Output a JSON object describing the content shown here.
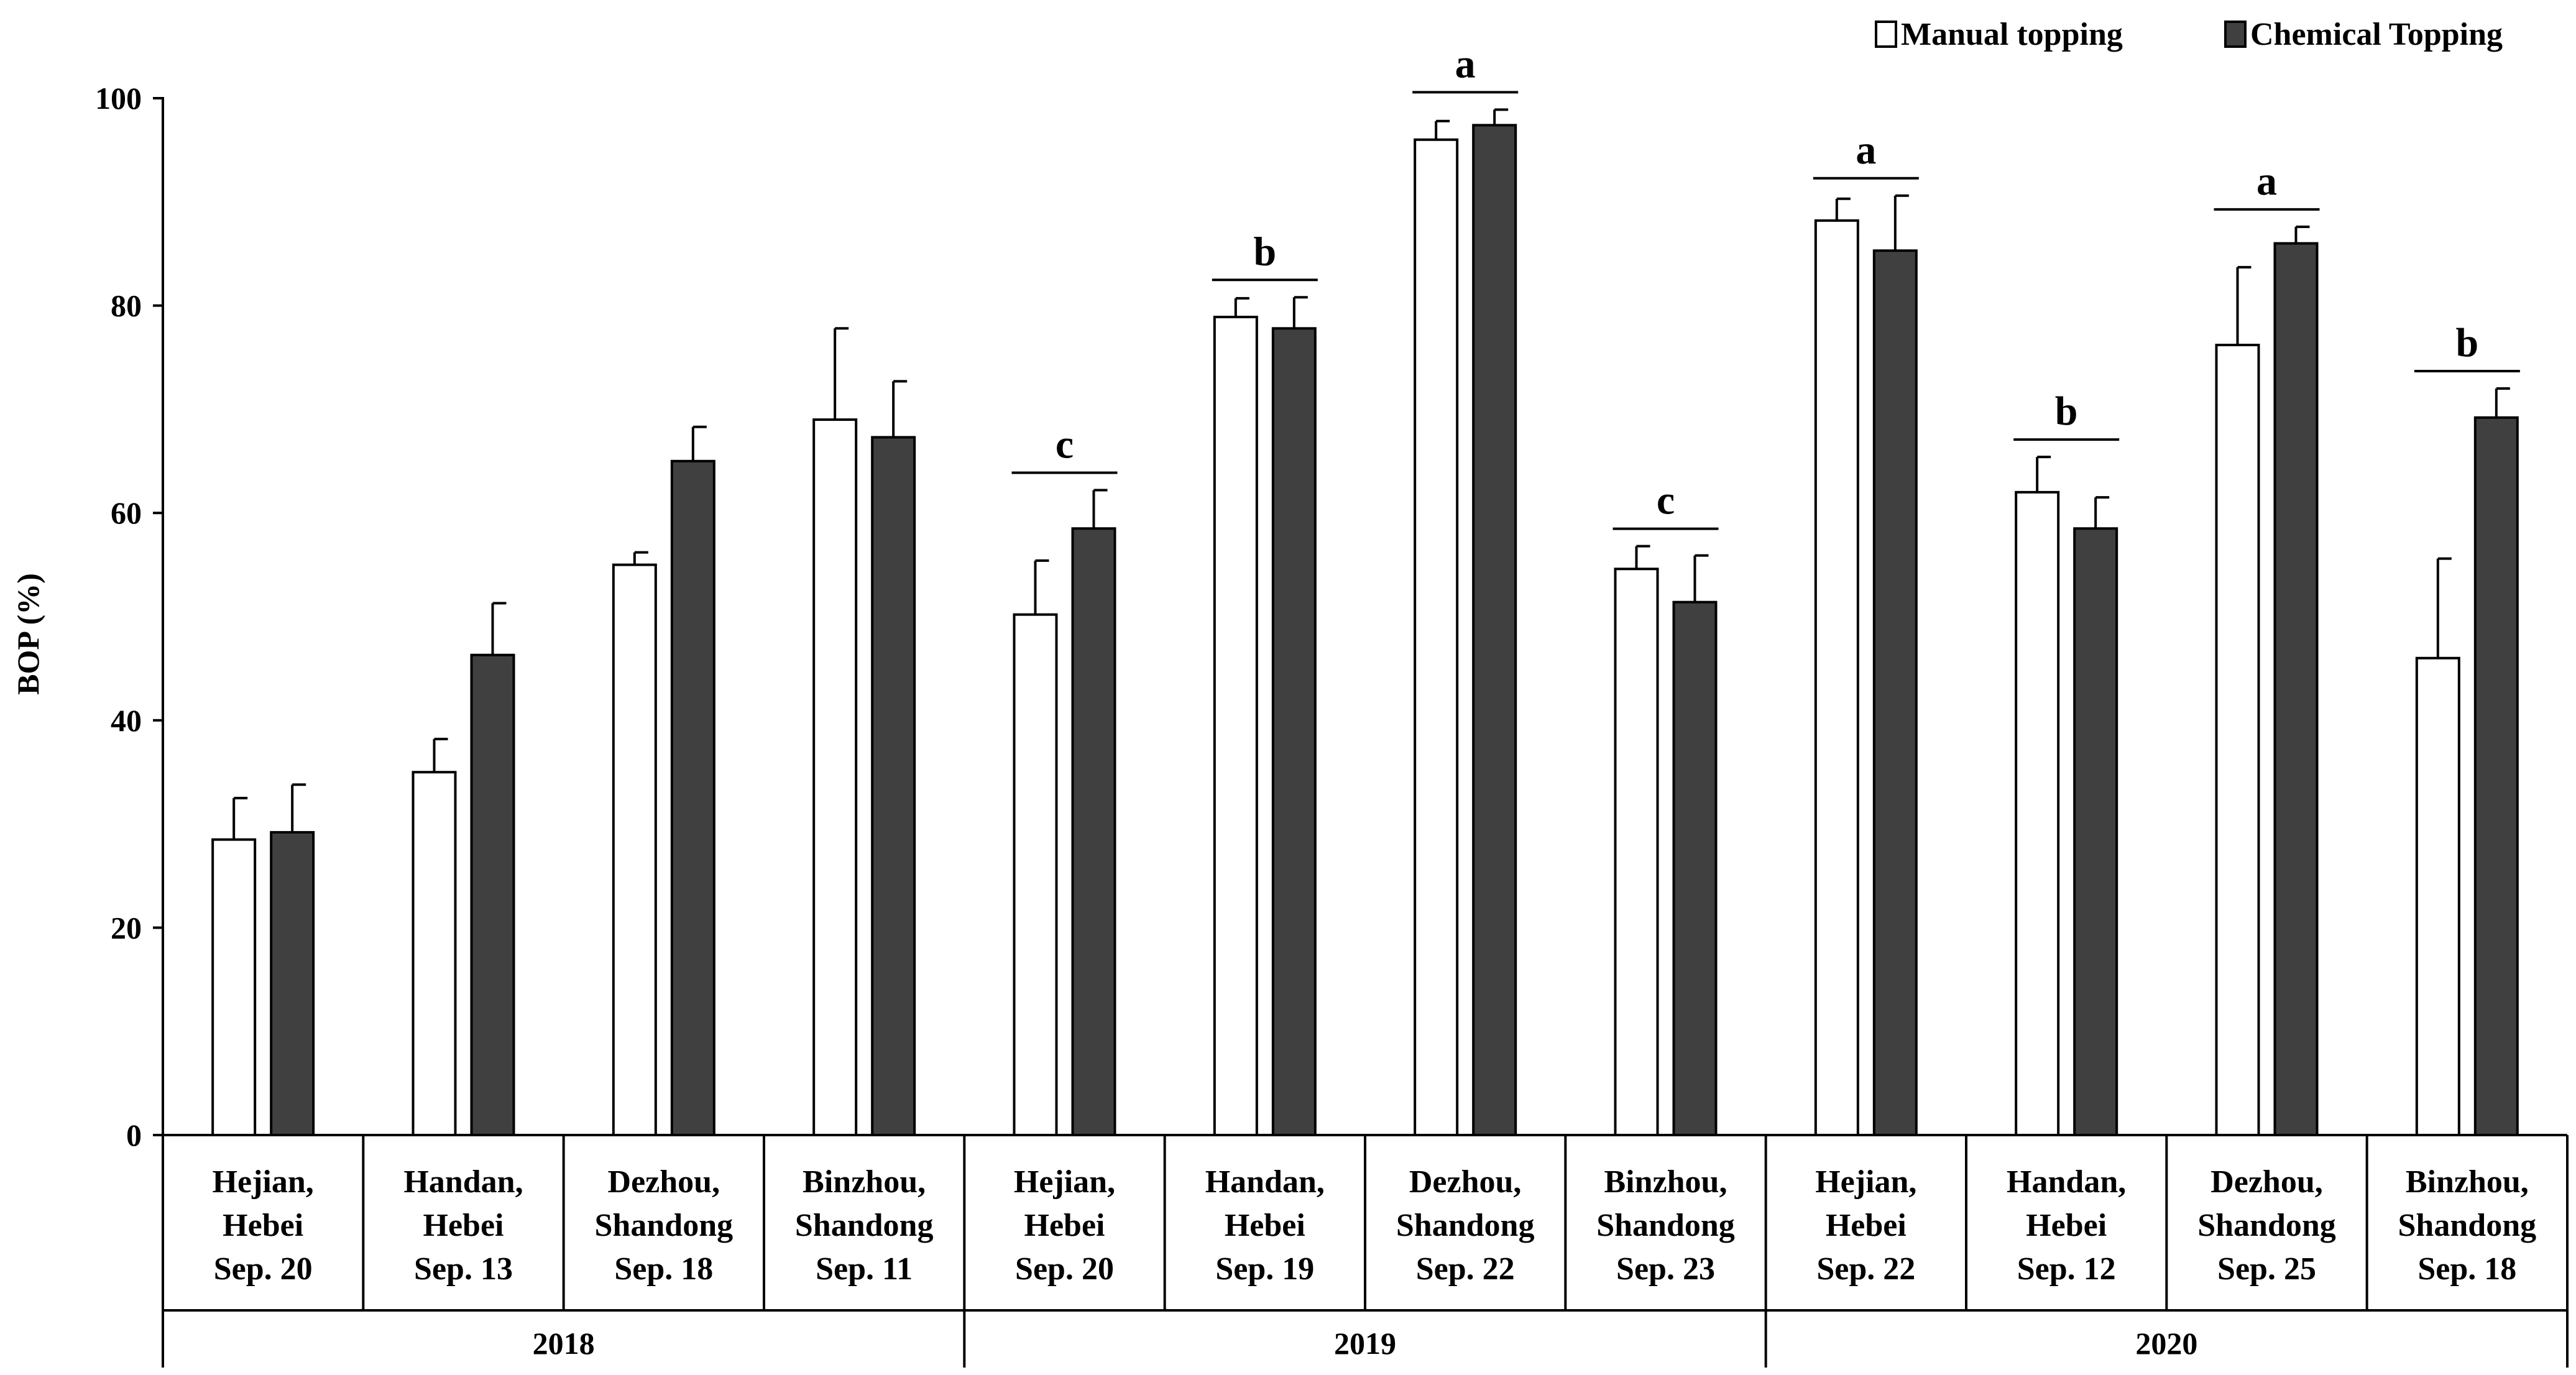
{
  "chart_data": {
    "type": "bar",
    "title": "",
    "xlabel": "",
    "ylabel": "BOP (%)",
    "ylim": [
      0,
      100
    ],
    "yticks": [
      "0",
      "20",
      "40",
      "60",
      "80",
      "100"
    ],
    "grid": false,
    "legend_position": "top-right",
    "series": [
      {
        "name": "Manual topping",
        "color": "#ffffff",
        "values": [
          28.5,
          35.0,
          55.0,
          69.0,
          50.2,
          78.9,
          96.0,
          54.6,
          88.2,
          62.0,
          76.2,
          46.0
        ],
        "errors": [
          4.0,
          3.2,
          1.2,
          8.8,
          5.2,
          1.8,
          1.8,
          2.2,
          2.1,
          3.4,
          7.5,
          9.6
        ]
      },
      {
        "name": "Chemical Topping",
        "color": "#404040",
        "values": [
          29.2,
          46.3,
          65.0,
          67.3,
          58.5,
          77.8,
          97.4,
          51.4,
          85.3,
          58.5,
          86.0,
          69.2
        ],
        "errors": [
          4.6,
          5.0,
          3.3,
          5.4,
          3.7,
          3.0,
          1.5,
          4.5,
          5.3,
          3.0,
          1.6,
          2.8
        ]
      }
    ],
    "groups": [
      {
        "year": "2018",
        "sites": [
          {
            "lines": [
              "Hejian,",
              "Hebei",
              "Sep. 20"
            ],
            "sig": ""
          },
          {
            "lines": [
              "Handan,",
              "Hebei",
              "Sep. 13"
            ],
            "sig": ""
          },
          {
            "lines": [
              "Dezhou,",
              "Shandong",
              "Sep. 18"
            ],
            "sig": ""
          },
          {
            "lines": [
              "Binzhou,",
              "Shandong",
              "Sep. 11"
            ],
            "sig": ""
          }
        ]
      },
      {
        "year": "2019",
        "sites": [
          {
            "lines": [
              "Hejian,",
              "Hebei",
              "Sep. 20"
            ],
            "sig": "c"
          },
          {
            "lines": [
              "Handan,",
              "Hebei",
              "Sep. 19"
            ],
            "sig": "b"
          },
          {
            "lines": [
              "Dezhou,",
              "Shandong",
              "Sep. 22"
            ],
            "sig": "a"
          },
          {
            "lines": [
              "Binzhou,",
              "Shandong",
              "Sep. 23"
            ],
            "sig": "c"
          }
        ]
      },
      {
        "year": "2020",
        "sites": [
          {
            "lines": [
              "Hejian,",
              "Hebei",
              "Sep. 22"
            ],
            "sig": "a"
          },
          {
            "lines": [
              "Handan,",
              "Hebei",
              "Sep. 12"
            ],
            "sig": "b"
          },
          {
            "lines": [
              "Dezhou,",
              "Shandong",
              "Sep. 25"
            ],
            "sig": "a"
          },
          {
            "lines": [
              "Binzhou,",
              "Shandong",
              "Sep. 18"
            ],
            "sig": "b"
          }
        ]
      }
    ]
  }
}
